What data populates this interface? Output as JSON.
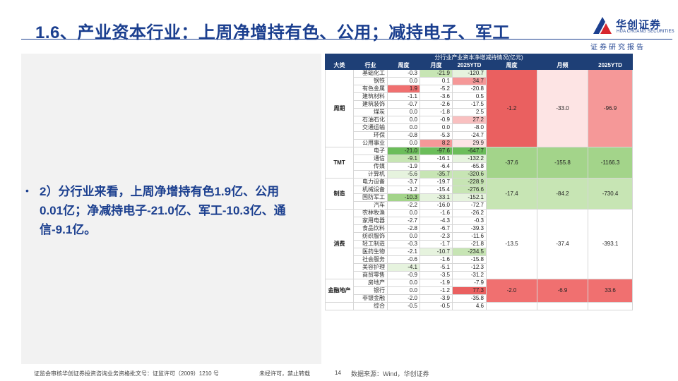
{
  "header": {
    "title": "1.6、产业资本行业：上周净增持有色、公用；减持电子、军工",
    "logo_name": "华创证券",
    "logo_en": "HUA CHUANG SECURITIES",
    "tagline": "证券研究报告"
  },
  "bullet": {
    "marker": "•",
    "text": "2）分行业来看，上周净增持有色1.9亿、公用0.01亿；净减持电子-21.0亿、军工-10.3亿、通信-9.1亿。"
  },
  "table": {
    "caption": "分行业产业资本净增减持情况(亿元)",
    "headers": [
      "大类",
      "行业",
      "周度",
      "月度",
      "2025YTD",
      "周度",
      "月频",
      "2025YTD"
    ],
    "sectors": [
      {
        "name": "周期",
        "totals": [
          "-1.2",
          "-33.0",
          "-96.9"
        ],
        "total_colors": [
          "r5",
          "r1",
          "r3"
        ],
        "rows": [
          {
            "name": "基础化工",
            "w": "-0.3",
            "m": "-21.9",
            "y": "-120.7",
            "cw": "",
            "cm": "g2",
            "cy": "g1"
          },
          {
            "name": "钢铁",
            "w": "0.0",
            "m": "0.1",
            "y": "34.7",
            "cw": "",
            "cm": "",
            "cy": "r3"
          },
          {
            "name": "有色金属",
            "w": "1.9",
            "m": "-5.2",
            "y": "-20.8",
            "cw": "r4",
            "cm": "",
            "cy": ""
          },
          {
            "name": "建筑材料",
            "w": "-1.1",
            "m": "-3.6",
            "y": "0.5",
            "cw": "",
            "cm": "",
            "cy": ""
          },
          {
            "name": "建筑装饰",
            "w": "-0.7",
            "m": "-2.6",
            "y": "-17.5",
            "cw": "",
            "cm": "",
            "cy": ""
          },
          {
            "name": "煤炭",
            "w": "0.0",
            "m": "-1.8",
            "y": "2.5",
            "cw": "",
            "cm": "",
            "cy": ""
          },
          {
            "name": "石油石化",
            "w": "0.0",
            "m": "-0.9",
            "y": "27.2",
            "cw": "",
            "cm": "",
            "cy": "r2"
          },
          {
            "name": "交通运输",
            "w": "0.0",
            "m": "0.0",
            "y": "-8.0",
            "cw": "",
            "cm": "",
            "cy": ""
          },
          {
            "name": "环保",
            "w": "-0.8",
            "m": "-5.3",
            "y": "-24.7",
            "cw": "",
            "cm": "",
            "cy": ""
          },
          {
            "name": "公用事业",
            "w": "0.0",
            "m": "8.2",
            "y": "29.9",
            "cw": "",
            "cm": "r3",
            "cy": "r1"
          }
        ]
      },
      {
        "name": "TMT",
        "totals": [
          "-37.6",
          "-155.8",
          "-1166.3"
        ],
        "total_colors": [
          "g3",
          "g3",
          "g3"
        ],
        "rows": [
          {
            "name": "电子",
            "w": "-21.0",
            "m": "-97.6",
            "y": "-647.7",
            "cw": "g4",
            "cm": "g4",
            "cy": "g4"
          },
          {
            "name": "通信",
            "w": "-9.1",
            "m": "-16.1",
            "y": "-132.2",
            "cw": "g2",
            "cm": "",
            "cy": "g1"
          },
          {
            "name": "传媒",
            "w": "-1.9",
            "m": "-6.4",
            "y": "-65.8",
            "cw": "",
            "cm": "",
            "cy": ""
          },
          {
            "name": "计算机",
            "w": "-5.6",
            "m": "-35.7",
            "y": "-320.6",
            "cw": "g1",
            "cm": "g2",
            "cy": "g2"
          }
        ]
      },
      {
        "name": "制造",
        "totals": [
          "-17.4",
          "-84.2",
          "-730.4"
        ],
        "total_colors": [
          "g2",
          "g2",
          "g2"
        ],
        "rows": [
          {
            "name": "电力设备",
            "w": "-3.7",
            "m": "-19.7",
            "y": "-228.9",
            "cw": "",
            "cm": "",
            "cy": "g2"
          },
          {
            "name": "机械设备",
            "w": "-1.2",
            "m": "-15.4",
            "y": "-276.6",
            "cw": "",
            "cm": "",
            "cy": "g2"
          },
          {
            "name": "国防军工",
            "w": "-10.3",
            "m": "-33.1",
            "y": "-152.1",
            "cw": "g3",
            "cm": "g1",
            "cy": "g1"
          },
          {
            "name": "汽车",
            "w": "-2.2",
            "m": "-16.0",
            "y": "-72.7",
            "cw": "",
            "cm": "",
            "cy": ""
          }
        ]
      },
      {
        "name": "消费",
        "totals": [
          "-13.5",
          "-37.4",
          "-393.1"
        ],
        "total_colors": [
          "",
          "",
          ""
        ],
        "rows": [
          {
            "name": "农林牧渔",
            "w": "0.0",
            "m": "-1.6",
            "y": "-26.2",
            "cw": "",
            "cm": "",
            "cy": ""
          },
          {
            "name": "家用电器",
            "w": "-2.7",
            "m": "-4.3",
            "y": "-0.3",
            "cw": "",
            "cm": "",
            "cy": ""
          },
          {
            "name": "食品饮料",
            "w": "-2.8",
            "m": "-6.7",
            "y": "-39.3",
            "cw": "",
            "cm": "",
            "cy": ""
          },
          {
            "name": "纺织服饰",
            "w": "0.0",
            "m": "-2.3",
            "y": "-11.6",
            "cw": "",
            "cm": "",
            "cy": ""
          },
          {
            "name": "轻工制造",
            "w": "-0.3",
            "m": "-1.7",
            "y": "-21.8",
            "cw": "",
            "cm": "",
            "cy": ""
          },
          {
            "name": "医药生物",
            "w": "-2.1",
            "m": "-10.7",
            "y": "-234.5",
            "cw": "",
            "cm": "g1",
            "cy": "g2"
          },
          {
            "name": "社会服务",
            "w": "-0.6",
            "m": "-1.6",
            "y": "-15.8",
            "cw": "",
            "cm": "",
            "cy": ""
          },
          {
            "name": "美容护理",
            "w": "-4.1",
            "m": "-5.1",
            "y": "-12.3",
            "cw": "g1",
            "cm": "",
            "cy": ""
          },
          {
            "name": "商贸零售",
            "w": "-0.9",
            "m": "-3.5",
            "y": "-31.2",
            "cw": "",
            "cm": "",
            "cy": ""
          }
        ]
      },
      {
        "name": "金融地产",
        "totals": [
          "-2.0",
          "-6.9",
          "33.6"
        ],
        "total_colors": [
          "r4",
          "r4",
          "r4"
        ],
        "rows": [
          {
            "name": "房地产",
            "w": "0.0",
            "m": "-1.9",
            "y": "-7.9",
            "cw": "",
            "cm": "",
            "cy": ""
          },
          {
            "name": "银行",
            "w": "0.0",
            "m": "-1.2",
            "y": "77.3",
            "cw": "",
            "cm": "",
            "cy": "r5"
          },
          {
            "name": "非银金融",
            "w": "-2.0",
            "m": "-3.9",
            "y": "-35.8",
            "cw": "",
            "cm": "",
            "cy": ""
          }
        ]
      }
    ],
    "last_row": {
      "name": "综合",
      "w": "-0.5",
      "m": "-0.5",
      "y": "4.6"
    }
  },
  "footer": {
    "license": "证监会审核华创证券投资咨询业务资格批文号：证监许可（2009）1210 号",
    "notice": "未经许可，禁止转载",
    "page": "14",
    "source": "数据来源：Wind，华创证券"
  }
}
